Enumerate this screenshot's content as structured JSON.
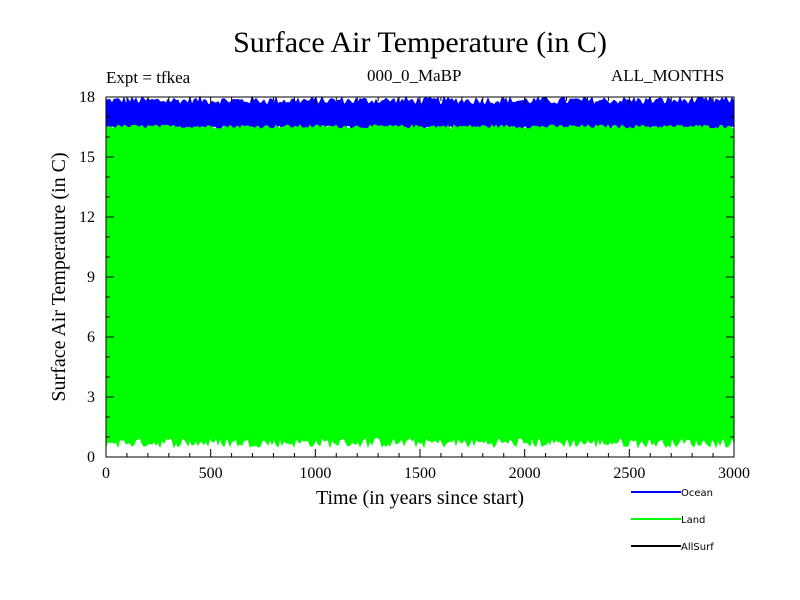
{
  "header": {
    "expt_label": "Expt = tfkea",
    "period_label": "000_0_MaBP",
    "months_label": "ALL_MONTHS"
  },
  "chart_data": {
    "type": "line",
    "title": "Surface Air Temperature (in C)",
    "xlabel": "Time (in years since start)",
    "ylabel": "Surface Air Temperature (in C)",
    "xlim": [
      0,
      3000
    ],
    "ylim": [
      0,
      18
    ],
    "xticks": [
      0,
      500,
      1000,
      1500,
      2000,
      2500,
      3000
    ],
    "yticks": [
      0,
      3,
      6,
      9,
      12,
      15,
      18
    ],
    "grid": false,
    "legend_position": "bottom-right",
    "series": [
      {
        "name": "Ocean",
        "color": "#0000ff",
        "y_range": [
          16.2,
          18.0
        ],
        "typical_low": 16.6,
        "typical_high": 17.6
      },
      {
        "name": "Land",
        "color": "#00ff00",
        "y_range": [
          0.5,
          16.6
        ],
        "typical_low": 1.0,
        "typical_high": 16.4
      },
      {
        "name": "AllSurf",
        "color": "#000000",
        "y_range": null
      }
    ]
  }
}
